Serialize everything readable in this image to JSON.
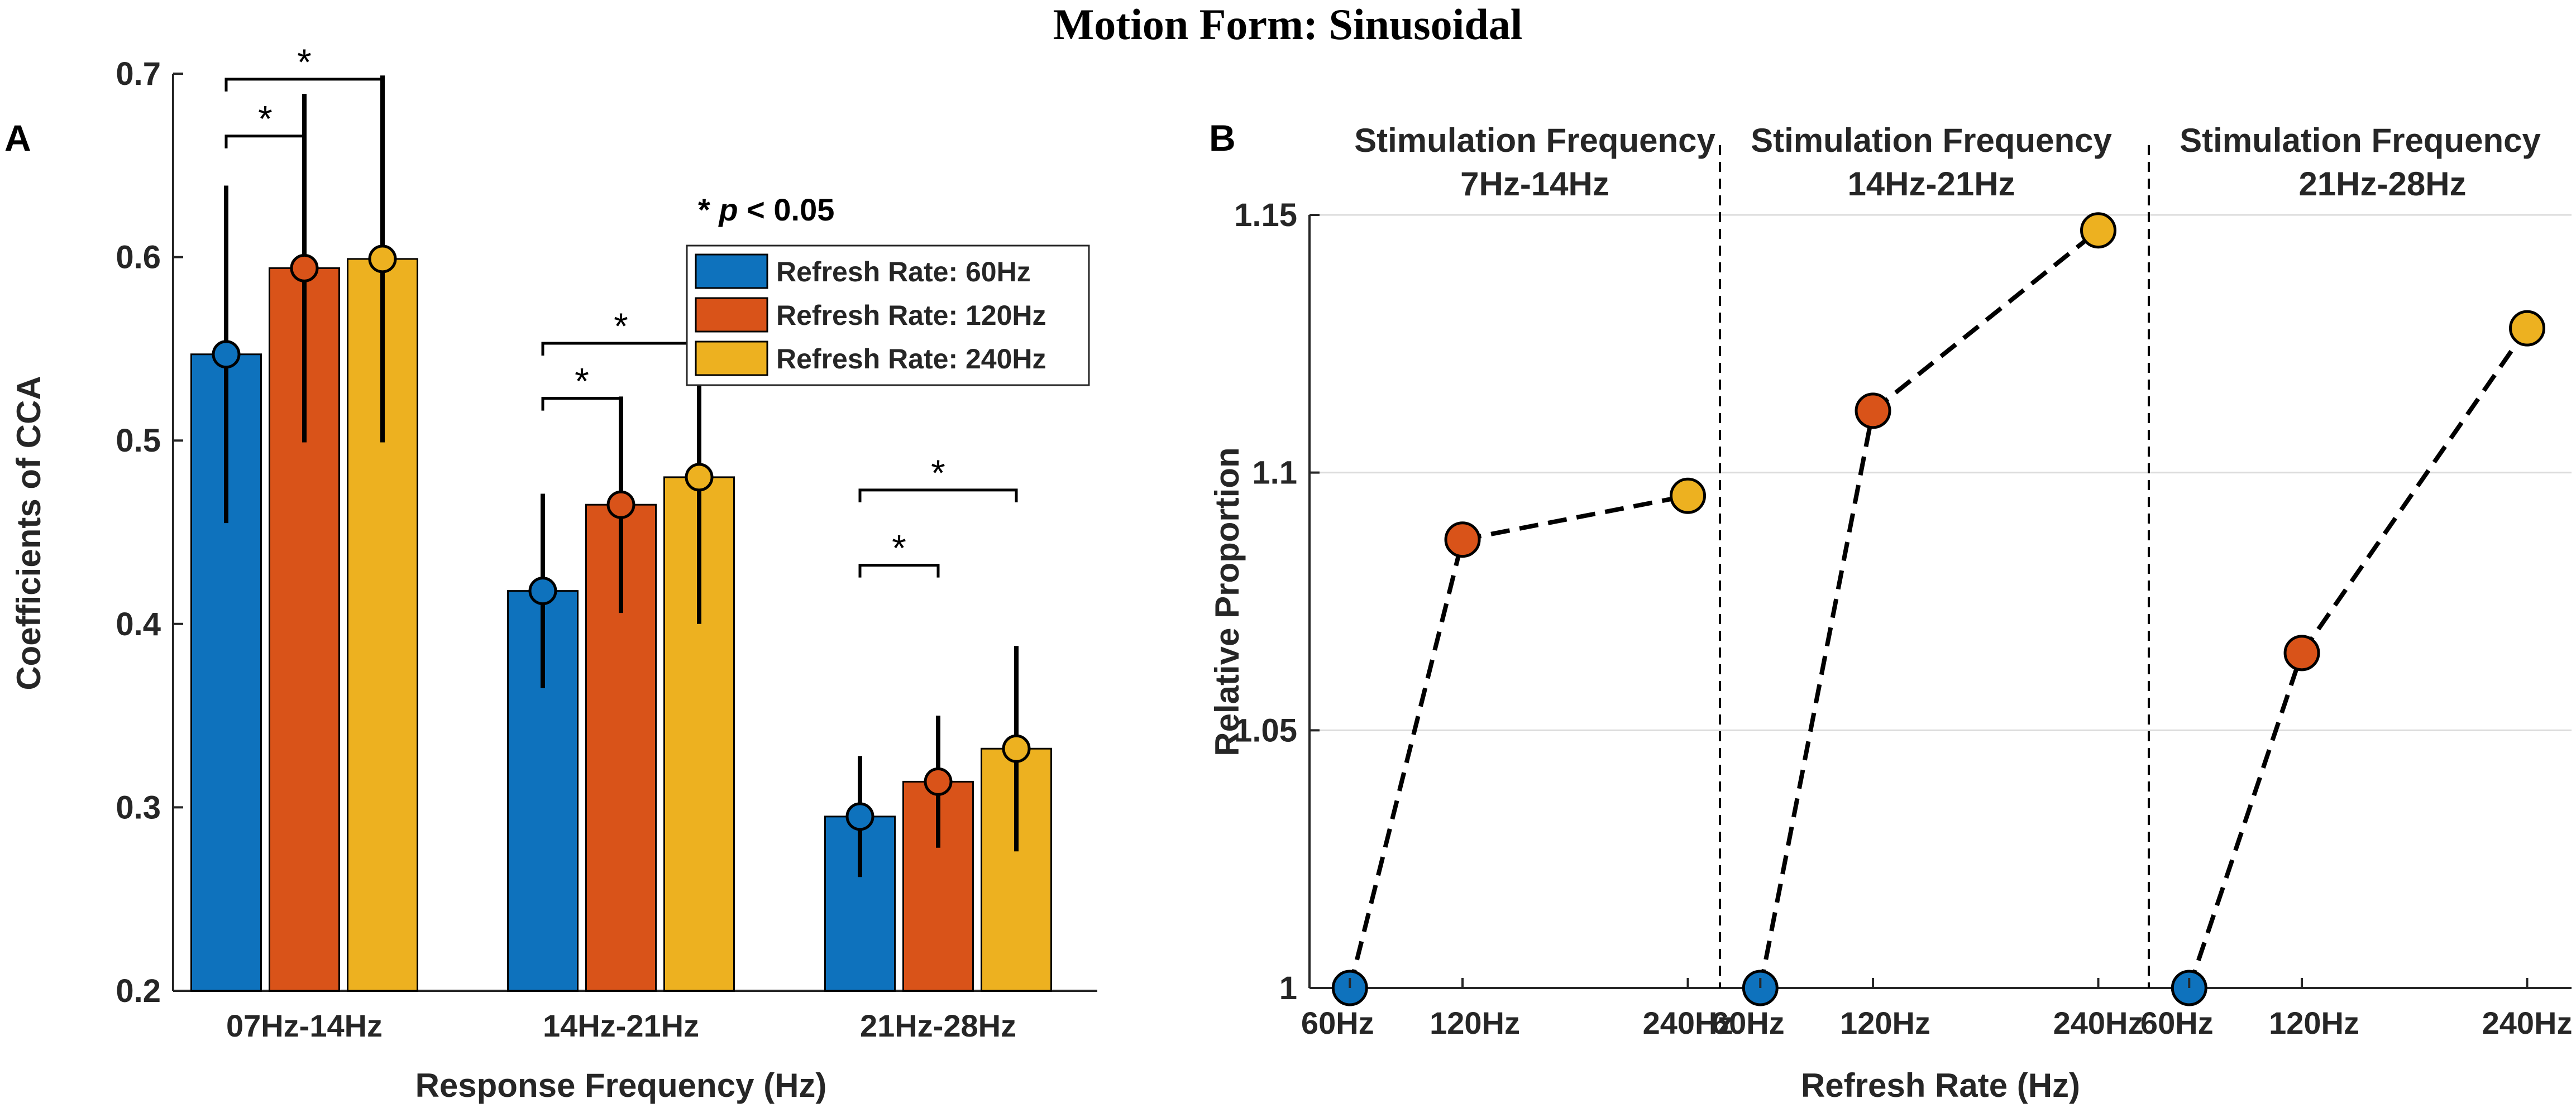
{
  "figure_title": "Motion Form: Sinusoidal",
  "panel_labels": [
    "A",
    "B"
  ],
  "significance_note": {
    "prefix": "* ",
    "p": "p",
    "suffix": " < 0.05"
  },
  "chart_data": [
    {
      "id": "A",
      "type": "bar",
      "title": "",
      "xlabel": "Response Frequency (Hz)",
      "ylabel": "Coefficients of CCA",
      "ylim": [
        0.2,
        0.7
      ],
      "yticks": [
        0.2,
        0.3,
        0.4,
        0.5,
        0.6,
        0.7
      ],
      "ytick_labels": [
        "0.2",
        "0.3",
        "0.4",
        "0.5",
        "0.6",
        "0.7"
      ],
      "categories": [
        "07Hz-14Hz",
        "14Hz-21Hz",
        "21Hz-28Hz"
      ],
      "legend_position": "top-right",
      "series": [
        {
          "name": "Refresh Rate: 60Hz",
          "color": "#0e72bd",
          "values": [
            0.547,
            0.418,
            0.295
          ],
          "error": [
            0.092,
            0.053,
            0.033
          ]
        },
        {
          "name": "Refresh Rate: 120Hz",
          "color": "#d95319",
          "values": [
            0.594,
            0.465,
            0.314
          ],
          "error": [
            0.095,
            0.059,
            0.036
          ]
        },
        {
          "name": "Refresh Rate: 240Hz",
          "color": "#edb120",
          "values": [
            0.599,
            0.48,
            0.332
          ],
          "error": [
            0.1,
            0.08,
            0.056
          ]
        }
      ],
      "significance": [
        {
          "category": 0,
          "from": 0,
          "to": 1,
          "level": 0.666,
          "label": "*"
        },
        {
          "category": 0,
          "from": 0,
          "to": 2,
          "level": 0.697,
          "label": "*"
        },
        {
          "category": 1,
          "from": 0,
          "to": 1,
          "level": 0.523,
          "label": "*"
        },
        {
          "category": 1,
          "from": 0,
          "to": 2,
          "level": 0.553,
          "label": "*"
        },
        {
          "category": 2,
          "from": 0,
          "to": 1,
          "level": 0.432,
          "label": "*"
        },
        {
          "category": 2,
          "from": 0,
          "to": 2,
          "level": 0.473,
          "label": "*"
        }
      ]
    },
    {
      "id": "B",
      "type": "line",
      "xlabel": "Refresh Rate (Hz)",
      "ylabel": "Relative Proportion",
      "ylim": [
        1.0,
        1.15
      ],
      "yticks": [
        1.0,
        1.05,
        1.1,
        1.15
      ],
      "ytick_labels": [
        "1",
        "1.05",
        "1.1",
        "1.15"
      ],
      "grid": true,
      "x": [
        60,
        120,
        240
      ],
      "x_labels": [
        "60Hz",
        "120Hz",
        "240Hz"
      ],
      "marker_colors": [
        "#0e72bd",
        "#d95319",
        "#edb120"
      ],
      "groups": [
        {
          "title_line1": "Stimulation Frequency",
          "title_line2": "7Hz-14Hz",
          "values": [
            1.0,
            1.087,
            1.0955
          ]
        },
        {
          "title_line1": "Stimulation Frequency",
          "title_line2": "14Hz-21Hz",
          "values": [
            1.0,
            1.112,
            1.147
          ]
        },
        {
          "title_line1": "Stimulation Frequency",
          "title_line2": "21Hz-28Hz",
          "values": [
            1.0,
            1.065,
            1.128
          ]
        }
      ]
    }
  ]
}
